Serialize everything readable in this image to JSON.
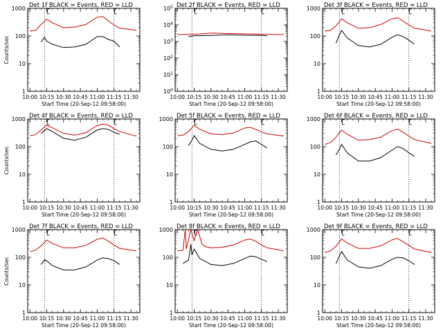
{
  "colors": {
    "events": "#000000",
    "lld": "#cc0000",
    "axes": "#000000",
    "background": "#ffffff"
  },
  "time_axis": {
    "ticks": [
      "10:00",
      "10:15",
      "10:30",
      "10:45",
      "11:00",
      "11:15",
      "11:30"
    ],
    "xlabel": "Start Time (20-Sep-12 09:58:00)"
  },
  "panels": [
    {
      "title": "Det 1f  BLACK = Events, RED = LLD",
      "ylabel": "Counts/sec",
      "chart_data": {
        "type": "line",
        "y_scale": "log",
        "ylim": [
          1,
          1000
        ],
        "y_ticks": [
          "1",
          "10",
          "100",
          "1000"
        ],
        "series": [
          {
            "name": "Events",
            "color": "#000000",
            "x_range": [
              "10:10",
              "11:20"
            ],
            "x": [
              "10:10",
              "10:13",
              "10:15",
              "10:20",
              "10:30",
              "10:40",
              "10:50",
              "11:00",
              "11:05",
              "11:10",
              "11:15",
              "11:20"
            ],
            "y": [
              60,
              90,
              65,
              50,
              38,
              40,
              50,
              95,
              95,
              75,
              65,
              40
            ]
          },
          {
            "name": "LLD",
            "color": "#cc0000",
            "x_range": [
              "10:00",
              "11:35"
            ],
            "x": [
              "10:00",
              "10:05",
              "10:10",
              "10:15",
              "10:20",
              "10:30",
              "10:40",
              "10:50",
              "11:00",
              "11:05",
              "11:10",
              "11:15",
              "11:20",
              "11:35"
            ],
            "y": [
              150,
              160,
              260,
              400,
              300,
              200,
              210,
              260,
              480,
              500,
              350,
              250,
              190,
              160
            ]
          }
        ]
      }
    },
    {
      "title": "Det 2f  BLACK = Events, RED = LLD",
      "ylabel": "",
      "chart_data": {
        "type": "line",
        "y_scale": "log",
        "ylim": [
          1,
          100000
        ],
        "y_ticks": [
          "10^0",
          "10^1",
          "10^2",
          "10^3",
          "10^4",
          "10^5"
        ],
        "series": [
          {
            "name": "Events",
            "color": "#000000",
            "x_range": [
              "10:10",
              "11:20"
            ],
            "x": [
              "10:10",
              "10:15",
              "10:30",
              "10:45",
              "11:00",
              "11:15",
              "11:20"
            ],
            "y": [
              2000,
              2200,
              2300,
              2500,
              2400,
              2300,
              2200
            ]
          },
          {
            "name": "LLD",
            "color": "#cc0000",
            "x_range": [
              "10:00",
              "11:35"
            ],
            "x": [
              "10:00",
              "10:15",
              "10:30",
              "10:45",
              "11:00",
              "11:15",
              "11:35"
            ],
            "y": [
              2600,
              2700,
              3200,
              3000,
              2900,
              2700,
              2600
            ]
          }
        ]
      }
    },
    {
      "title": "Det 3f  BLACK = Events, RED = LLD",
      "ylabel": "",
      "chart_data": {
        "type": "line",
        "y_scale": "log",
        "ylim": [
          1,
          1000
        ],
        "y_ticks": [
          "1",
          "10",
          "100",
          "1000"
        ],
        "series": [
          {
            "name": "Events",
            "color": "#000000",
            "x_range": [
              "10:10",
              "11:20"
            ],
            "x": [
              "10:10",
              "10:13",
              "10:15",
              "10:20",
              "10:30",
              "10:40",
              "10:50",
              "11:00",
              "11:05",
              "11:10",
              "11:15",
              "11:20"
            ],
            "y": [
              55,
              110,
              160,
              85,
              45,
              40,
              50,
              90,
              110,
              95,
              70,
              50
            ]
          },
          {
            "name": "LLD",
            "color": "#cc0000",
            "x_range": [
              "10:00",
              "11:35"
            ],
            "x": [
              "10:00",
              "10:05",
              "10:10",
              "10:15",
              "10:20",
              "10:30",
              "10:40",
              "10:50",
              "11:00",
              "11:05",
              "11:10",
              "11:15",
              "11:20",
              "11:35"
            ],
            "y": [
              150,
              160,
              230,
              420,
              300,
              190,
              200,
              260,
              420,
              460,
              340,
              250,
              190,
              150
            ]
          }
        ]
      }
    },
    {
      "title": "Det 4f  BLACK = Events, RED = LLD",
      "ylabel": "Counts/sec",
      "chart_data": {
        "type": "line",
        "y_scale": "log",
        "ylim": [
          1,
          1000
        ],
        "y_ticks": [
          "1",
          "10",
          "100",
          "1000"
        ],
        "series": [
          {
            "name": "Events",
            "color": "#000000",
            "x_range": [
              "10:10",
              "11:20"
            ],
            "x": [
              "10:10",
              "10:15",
              "10:20",
              "10:30",
              "10:40",
              "10:50",
              "11:00",
              "11:05",
              "11:10",
              "11:15",
              "11:20"
            ],
            "y": [
              300,
              450,
              350,
              200,
              170,
              220,
              400,
              450,
              420,
              330,
              280
            ]
          },
          {
            "name": "LLD",
            "color": "#cc0000",
            "x_range": [
              "10:00",
              "11:35"
            ],
            "x": [
              "10:00",
              "10:05",
              "10:10",
              "10:15",
              "10:20",
              "10:30",
              "10:40",
              "10:50",
              "11:00",
              "11:05",
              "11:10",
              "11:15",
              "11:20",
              "11:35"
            ],
            "y": [
              250,
              270,
              400,
              600,
              480,
              300,
              260,
              320,
              580,
              650,
              600,
              450,
              350,
              240
            ]
          }
        ]
      }
    },
    {
      "title": "Det 5f  BLACK = Events, RED = LLD",
      "ylabel": "",
      "chart_data": {
        "type": "line",
        "y_scale": "log",
        "ylim": [
          1,
          1000
        ],
        "y_ticks": [
          "1",
          "10",
          "100",
          "1000"
        ],
        "series": [
          {
            "name": "Events",
            "color": "#000000",
            "x_range": [
              "10:10",
              "11:20"
            ],
            "x": [
              "10:10",
              "10:13",
              "10:15",
              "10:20",
              "10:30",
              "10:40",
              "10:50",
              "11:00",
              "11:05",
              "11:10",
              "11:15",
              "11:20"
            ],
            "y": [
              110,
              170,
              250,
              130,
              80,
              70,
              80,
              120,
              150,
              160,
              120,
              90
            ]
          },
          {
            "name": "LLD",
            "color": "#cc0000",
            "x_range": [
              "10:00",
              "11:35"
            ],
            "x": [
              "10:00",
              "10:05",
              "10:10",
              "10:15",
              "10:20",
              "10:30",
              "10:40",
              "10:50",
              "11:00",
              "11:05",
              "11:10",
              "11:15",
              "11:20",
              "11:35"
            ],
            "y": [
              250,
              260,
              350,
              600,
              420,
              290,
              270,
              310,
              470,
              500,
              420,
              340,
              290,
              240
            ]
          }
        ]
      }
    },
    {
      "title": "Det 6f  BLACK = Events, RED = LLD",
      "ylabel": "",
      "chart_data": {
        "type": "line",
        "y_scale": "log",
        "ylim": [
          1,
          1000
        ],
        "y_ticks": [
          "1",
          "10",
          "100",
          "1000"
        ],
        "series": [
          {
            "name": "Events",
            "color": "#000000",
            "x_range": [
              "10:10",
              "11:20"
            ],
            "x": [
              "10:10",
              "10:13",
              "10:15",
              "10:20",
              "10:30",
              "10:40",
              "10:50",
              "11:00",
              "11:05",
              "11:10",
              "11:15",
              "11:20"
            ],
            "y": [
              50,
              80,
              120,
              60,
              30,
              30,
              40,
              75,
              100,
              85,
              60,
              45
            ]
          },
          {
            "name": "LLD",
            "color": "#cc0000",
            "x_range": [
              "10:00",
              "11:35"
            ],
            "x": [
              "10:00",
              "10:05",
              "10:10",
              "10:15",
              "10:20",
              "10:30",
              "10:40",
              "10:50",
              "11:00",
              "11:05",
              "11:10",
              "11:15",
              "11:20",
              "11:35"
            ],
            "y": [
              120,
              140,
              220,
              400,
              280,
              170,
              180,
              220,
              380,
              430,
              330,
              240,
              180,
              130
            ]
          }
        ]
      }
    },
    {
      "title": "Det 7f  BLACK = Events, RED = LLD",
      "ylabel": "Counts/sec",
      "chart_data": {
        "type": "line",
        "y_scale": "log",
        "ylim": [
          1,
          1000
        ],
        "y_ticks": [
          "1",
          "10",
          "100",
          "1000"
        ],
        "series": [
          {
            "name": "Events",
            "color": "#000000",
            "x_range": [
              "10:10",
              "11:20"
            ],
            "x": [
              "10:10",
              "10:13",
              "10:15",
              "10:20",
              "10:30",
              "10:40",
              "10:50",
              "11:00",
              "11:05",
              "11:10",
              "11:15",
              "11:20"
            ],
            "y": [
              55,
              80,
              75,
              50,
              35,
              35,
              45,
              80,
              95,
              90,
              75,
              55
            ]
          },
          {
            "name": "LLD",
            "color": "#cc0000",
            "x_range": [
              "10:00",
              "11:35"
            ],
            "x": [
              "10:00",
              "10:05",
              "10:10",
              "10:15",
              "10:20",
              "10:30",
              "10:40",
              "10:50",
              "11:00",
              "11:05",
              "11:10",
              "11:15",
              "11:20",
              "11:35"
            ],
            "y": [
              160,
              180,
              260,
              420,
              320,
              220,
              220,
              270,
              450,
              500,
              380,
              280,
              210,
              170
            ]
          }
        ]
      }
    },
    {
      "title": "Det 8f  BLACK = Events, RED = LLD",
      "ylabel": "",
      "chart_data": {
        "type": "line",
        "y_scale": "log",
        "ylim": [
          1,
          1000
        ],
        "y_ticks": [
          "1",
          "10",
          "100",
          "1000"
        ],
        "series": [
          {
            "name": "Events",
            "color": "#000000",
            "x_range": [
              "10:05",
              "11:20"
            ],
            "x": [
              "10:05",
              "10:10",
              "10:12",
              "10:13",
              "10:15",
              "10:20",
              "10:30",
              "10:40",
              "10:50",
              "11:00",
              "11:05",
              "11:10",
              "11:15",
              "11:20"
            ],
            "y": [
              60,
              80,
              300,
              120,
              200,
              90,
              55,
              50,
              60,
              90,
              110,
              105,
              85,
              70
            ]
          },
          {
            "name": "LLD",
            "color": "#cc0000",
            "x_range": [
              "10:00",
              "11:35"
            ],
            "x": [
              "10:00",
              "10:05",
              "10:07",
              "10:08",
              "10:12",
              "10:15",
              "10:18",
              "10:22",
              "10:25",
              "10:30",
              "10:40",
              "10:50",
              "11:00",
              "11:05",
              "11:10",
              "11:15",
              "11:20",
              "11:35"
            ],
            "y": [
              170,
              180,
              1000,
              200,
              1000,
              400,
              1000,
              300,
              240,
              220,
              230,
              280,
              420,
              460,
              380,
              280,
              220,
              170
            ]
          }
        ]
      }
    },
    {
      "title": "Det 9f  BLACK = Events, RED = LLD",
      "ylabel": "",
      "chart_data": {
        "type": "line",
        "y_scale": "log",
        "ylim": [
          1,
          1000
        ],
        "y_ticks": [
          "1",
          "10",
          "100",
          "1000"
        ],
        "series": [
          {
            "name": "Events",
            "color": "#000000",
            "x_range": [
              "10:10",
              "11:20"
            ],
            "x": [
              "10:10",
              "10:13",
              "10:15",
              "10:20",
              "10:30",
              "10:40",
              "10:50",
              "11:00",
              "11:05",
              "11:10",
              "11:15",
              "11:20"
            ],
            "y": [
              60,
              110,
              160,
              80,
              45,
              40,
              50,
              85,
              100,
              95,
              75,
              55
            ]
          },
          {
            "name": "LLD",
            "color": "#cc0000",
            "x_range": [
              "10:00",
              "11:35"
            ],
            "x": [
              "10:00",
              "10:05",
              "10:10",
              "10:15",
              "10:20",
              "10:30",
              "10:40",
              "10:50",
              "11:00",
              "11:05",
              "11:10",
              "11:15",
              "11:20",
              "11:35"
            ],
            "y": [
              150,
              170,
              250,
              460,
              330,
              210,
              210,
              260,
              430,
              480,
              360,
              270,
              200,
              150
            ]
          }
        ]
      }
    }
  ]
}
